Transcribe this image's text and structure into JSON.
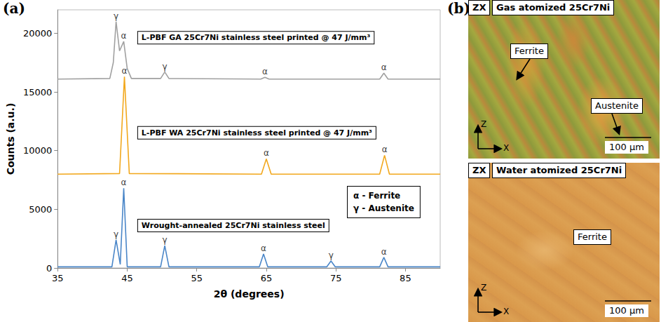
{
  "chart_data": {
    "type": "line",
    "panel_label": "(a)",
    "x_label": "2θ (degrees)",
    "y_label": "Counts (a.u.)",
    "xlim": [
      35,
      90
    ],
    "xticks": [
      35,
      45,
      55,
      65,
      75,
      85
    ],
    "ylim": [
      0,
      22000
    ],
    "yticks": [
      0,
      5000,
      10000,
      15000,
      20000
    ],
    "grid": false,
    "phase_key": [
      "α - Ferrite",
      "γ - Austenite"
    ],
    "series": [
      {
        "name": "L-PBF GA 25Cr7Ni stainless steel printed @ 47 J/mm³",
        "color": "#a0a0a0",
        "x": [
          35,
          42.5,
          43.0,
          43.4,
          43.9,
          44.5,
          45.0,
          45.6,
          49.8,
          50.4,
          51.0,
          64.2,
          64.8,
          65.4,
          81.3,
          81.9,
          82.5,
          90
        ],
        "values": [
          16100,
          16150,
          17500,
          21000,
          18500,
          19300,
          17000,
          16150,
          16150,
          16700,
          16150,
          16100,
          16250,
          16100,
          16100,
          16600,
          16100,
          16100
        ],
        "peaks": [
          {
            "x": 43.4,
            "label": "γ"
          },
          {
            "x": 44.5,
            "label": "α"
          },
          {
            "x": 50.4,
            "label": "γ"
          },
          {
            "x": 64.8,
            "label": "α"
          },
          {
            "x": 81.9,
            "label": "α"
          }
        ]
      },
      {
        "name": "L-PBF WA 25Cr7Ni stainless steel printed @ 47 J/mm³",
        "color": "#f2a81d",
        "x": [
          35,
          43.9,
          44.6,
          45.3,
          64.3,
          65.0,
          65.7,
          81.3,
          82.0,
          82.7,
          90
        ],
        "values": [
          8000,
          8050,
          16300,
          8050,
          8000,
          9300,
          8000,
          8000,
          9600,
          8000,
          8000
        ],
        "peaks": [
          {
            "x": 44.6,
            "label": "α"
          },
          {
            "x": 65.0,
            "label": "α"
          },
          {
            "x": 82.0,
            "label": "α"
          }
        ]
      },
      {
        "name": "Wrought-annealed 25Cr7Ni stainless steel",
        "color": "#4a86c8",
        "x": [
          35,
          42.8,
          43.4,
          44.0,
          44.5,
          45.0,
          49.8,
          50.4,
          51.0,
          64.0,
          64.6,
          65.2,
          73.7,
          74.3,
          74.9,
          81.3,
          81.9,
          82.5,
          90
        ],
        "values": [
          100,
          100,
          2400,
          300,
          6800,
          100,
          100,
          1900,
          100,
          100,
          1200,
          100,
          100,
          600,
          100,
          100,
          900,
          100,
          100
        ],
        "peaks": [
          {
            "x": 43.4,
            "label": "γ"
          },
          {
            "x": 44.5,
            "label": "α"
          },
          {
            "x": 50.4,
            "label": "γ"
          },
          {
            "x": 64.6,
            "label": "α"
          },
          {
            "x": 74.3,
            "label": "γ"
          },
          {
            "x": 81.9,
            "label": "α"
          }
        ]
      }
    ]
  },
  "micrographs": {
    "panel_label": "(b)",
    "images": [
      {
        "view": "ZX",
        "title": "Gas atomized 25Cr7Ni",
        "labels": [
          "Ferrite",
          "Austenite"
        ],
        "axes": [
          "Z",
          "X"
        ],
        "scale_bar": "100 µm"
      },
      {
        "view": "ZX",
        "title": "Water atomized 25Cr7Ni",
        "labels": [
          "Ferrite"
        ],
        "axes": [
          "Z",
          "X"
        ],
        "scale_bar": "100 µm"
      }
    ]
  }
}
